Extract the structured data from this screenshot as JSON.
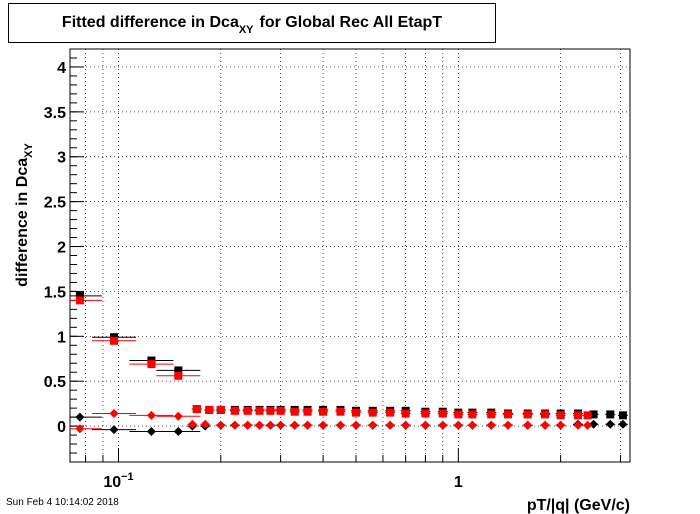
{
  "timestamp": "Sun Feb  4 10:14:02 2018",
  "chart_data": {
    "type": "scatter",
    "title": "Fitted difference in Dca",
    "title_sub": "XY",
    "title_rest": "for Global Rec All EtapT",
    "xlabel": "pT/|q| (GeV/c)",
    "ylabel": "difference in Dca",
    "ylabel_sub": "XY",
    "x_scale": "log",
    "xlim": [
      0.072,
      3.2
    ],
    "ylim": [
      -0.4,
      4.2
    ],
    "grid": true,
    "x_ticks": [
      {
        "value": 0.1,
        "base": "10",
        "exp": "−1"
      },
      {
        "value": 1,
        "base": "1",
        "exp": ""
      }
    ],
    "y_ticks": [
      {
        "value": 0,
        "label": "0"
      },
      {
        "value": 0.5,
        "label": "0.5"
      },
      {
        "value": 1,
        "label": "1"
      },
      {
        "value": 1.5,
        "label": "1.5"
      },
      {
        "value": 2,
        "label": "2"
      },
      {
        "value": 2.5,
        "label": "2.5"
      },
      {
        "value": 3,
        "label": "3"
      },
      {
        "value": 3.5,
        "label": "3.5"
      },
      {
        "value": 4,
        "label": "4"
      }
    ],
    "series": [
      {
        "color": "#000000",
        "marker": "square",
        "x": [
          0.077,
          0.097,
          0.125,
          0.15,
          0.17,
          0.185,
          0.2,
          0.22,
          0.24,
          0.26,
          0.28,
          0.3,
          0.33,
          0.36,
          0.4,
          0.45,
          0.5,
          0.56,
          0.63,
          0.7,
          0.8,
          0.9,
          1.0,
          1.1,
          1.25,
          1.4,
          1.6,
          1.8,
          2.0,
          2.25,
          2.5,
          2.8,
          3.05
        ],
        "y": [
          1.45,
          0.99,
          0.73,
          0.62,
          0.19,
          0.18,
          0.18,
          0.18,
          0.18,
          0.18,
          0.18,
          0.18,
          0.18,
          0.18,
          0.18,
          0.18,
          0.17,
          0.17,
          0.17,
          0.17,
          0.16,
          0.16,
          0.15,
          0.15,
          0.15,
          0.14,
          0.14,
          0.14,
          0.14,
          0.14,
          0.13,
          0.13,
          0.12
        ]
      },
      {
        "color": "#ff0000",
        "marker": "square",
        "x": [
          0.077,
          0.097,
          0.125,
          0.15,
          0.17,
          0.185,
          0.2,
          0.22,
          0.24,
          0.26,
          0.28,
          0.3,
          0.33,
          0.36,
          0.4,
          0.45,
          0.5,
          0.56,
          0.63,
          0.7,
          0.8,
          0.9,
          1.0,
          1.1,
          1.25,
          1.4,
          1.6,
          1.8,
          2.0,
          2.25,
          2.4
        ],
        "y": [
          1.4,
          0.95,
          0.69,
          0.56,
          0.19,
          0.18,
          0.18,
          0.17,
          0.17,
          0.17,
          0.17,
          0.17,
          0.16,
          0.16,
          0.16,
          0.16,
          0.15,
          0.15,
          0.15,
          0.14,
          0.14,
          0.14,
          0.13,
          0.13,
          0.13,
          0.13,
          0.13,
          0.13,
          0.12,
          0.12,
          0.12
        ]
      },
      {
        "color": "#000000",
        "marker": "diamond",
        "x": [
          0.077,
          0.097,
          0.125,
          0.15,
          0.165,
          0.18,
          0.2,
          0.22,
          0.24,
          0.26,
          0.28,
          0.3,
          0.33,
          0.36,
          0.4,
          0.45,
          0.5,
          0.56,
          0.63,
          0.7,
          0.8,
          0.9,
          1.0,
          1.1,
          1.25,
          1.4,
          1.6,
          1.8,
          2.0,
          2.25,
          2.5,
          2.8,
          3.05
        ],
        "y": [
          0.1,
          -0.04,
          -0.06,
          -0.06,
          0.0,
          0.0,
          0.01,
          0.01,
          0.01,
          0.01,
          0.01,
          0.01,
          0.01,
          0.01,
          0.01,
          0.01,
          0.01,
          0.01,
          0.01,
          0.01,
          0.01,
          0.01,
          0.01,
          0.01,
          0.01,
          0.01,
          0.01,
          0.01,
          0.01,
          0.02,
          0.02,
          0.02,
          0.02
        ]
      },
      {
        "color": "#ff0000",
        "marker": "diamond",
        "x": [
          0.077,
          0.097,
          0.125,
          0.15,
          0.165,
          0.18,
          0.2,
          0.22,
          0.24,
          0.26,
          0.28,
          0.3,
          0.33,
          0.36,
          0.4,
          0.45,
          0.5,
          0.56,
          0.63,
          0.7,
          0.8,
          0.9,
          1.0,
          1.1,
          1.25,
          1.4,
          1.6,
          1.8,
          2.0,
          2.25,
          2.4
        ],
        "y": [
          -0.03,
          0.14,
          0.12,
          0.11,
          0.02,
          0.02,
          0.01,
          0.01,
          0.01,
          0.01,
          0.01,
          0.01,
          0.01,
          0.01,
          0.01,
          0.01,
          0.01,
          0.01,
          0.01,
          0.01,
          0.01,
          0.01,
          0.01,
          0.01,
          0.01,
          0.01,
          0.01,
          0.01,
          0.01,
          0.01,
          0.01
        ]
      }
    ]
  }
}
